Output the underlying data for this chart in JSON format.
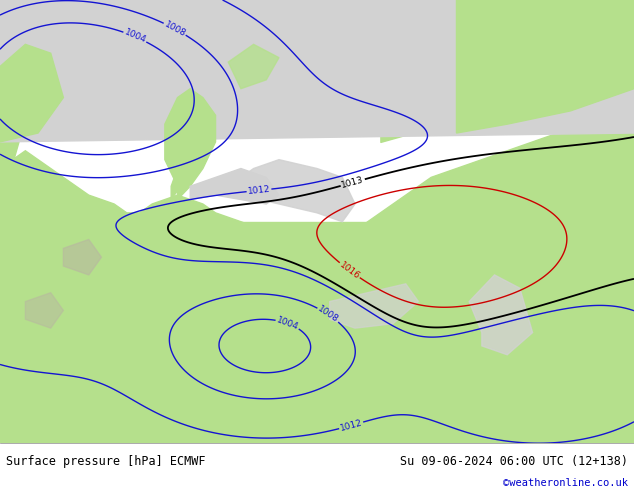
{
  "title_left": "Surface pressure [hPa] ECMWF",
  "title_right": "Su 09-06-2024 06:00 UTC (12+138)",
  "watermark": "©weatheronline.co.uk",
  "sea_color": "#d2d2d2",
  "land_color": "#b5e08c",
  "land_dark_color": "#9ecf70",
  "mountain_color": "#c8c8a0",
  "fig_width": 6.34,
  "fig_height": 4.9,
  "dpi": 100,
  "contour_blue_color": "#1414d2",
  "contour_black_color": "#000000",
  "contour_red_color": "#cc0000",
  "footer_bg": "#ffffff",
  "label_fontsize": 6.5,
  "footer_fontsize": 8.5
}
